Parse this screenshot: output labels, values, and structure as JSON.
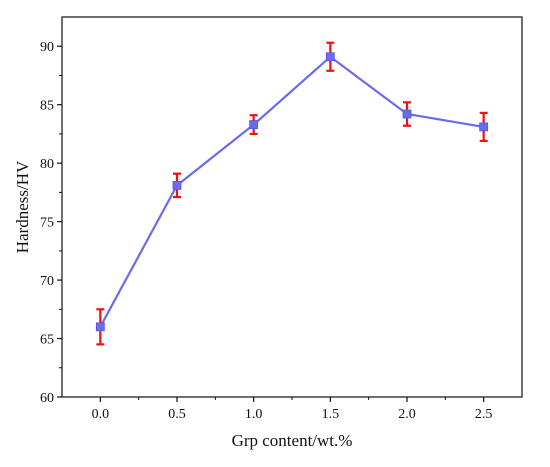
{
  "chart_data": {
    "type": "line",
    "title": "",
    "xlabel": "Grp content/wt.%",
    "ylabel": "Hardness/HV",
    "x": [
      0.0,
      0.5,
      1.0,
      1.5,
      2.0,
      2.5
    ],
    "x_tick_labels": [
      "0.0",
      "0.5",
      "1.0",
      "1.5",
      "2.0",
      "2.5"
    ],
    "xlim": [
      -0.25,
      2.75
    ],
    "ylim": [
      60,
      92.5
    ],
    "y_ticks": [
      60,
      65,
      70,
      75,
      80,
      85,
      90
    ],
    "y_tick_labels": [
      "60",
      "65",
      "70",
      "75",
      "80",
      "85",
      "90"
    ],
    "series": [
      {
        "values": [
          66.0,
          78.1,
          83.3,
          89.1,
          84.2,
          83.1
        ],
        "errors": [
          1.5,
          1.0,
          0.8,
          1.2,
          1.0,
          1.2
        ]
      }
    ],
    "grid": false,
    "legend": "none",
    "colors": {
      "line": "#6b6bf0",
      "marker": "#6b6bf0",
      "error_bar": "#ee1111",
      "axis": "#111111"
    }
  }
}
